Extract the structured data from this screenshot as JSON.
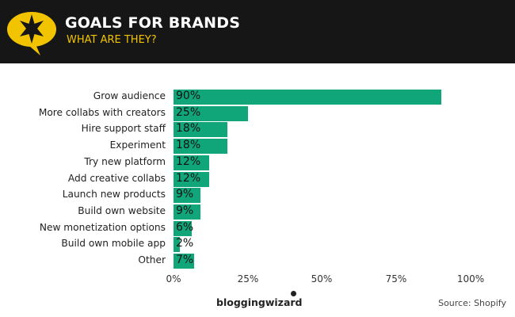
{
  "header": {
    "title": "GOALS FOR BRANDS",
    "subtitle": "WHAT ARE THEY?",
    "logo_icon": "star-speech-bubble-icon",
    "accent_color": "#f2c400",
    "background_color": "#161616"
  },
  "chart_data": {
    "type": "bar",
    "orientation": "horizontal",
    "title": "GOALS FOR BRANDS",
    "subtitle": "WHAT ARE THEY?",
    "categories": [
      "Grow audience",
      "More collabs with creators",
      "Hire support staff",
      "Experiment",
      "Try new platform",
      "Add creative collabs",
      "Launch new products",
      "Build own website",
      "New monetization options",
      "Build own mobile app",
      "Other"
    ],
    "values": [
      90,
      25,
      18,
      18,
      12,
      12,
      9,
      9,
      6,
      2,
      7
    ],
    "value_labels": [
      "90%",
      "25%",
      "18%",
      "18%",
      "12%",
      "12%",
      "9%",
      "9%",
      "6%",
      "2%",
      "7%"
    ],
    "xlabel": "",
    "ylabel": "",
    "xlim": [
      0,
      100
    ],
    "x_ticks": [
      "0%",
      "25%",
      "50%",
      "75%",
      "100%"
    ],
    "grid": false,
    "legend": null,
    "bar_color": "#10a67a"
  },
  "footer": {
    "brand": "bloggingwizard",
    "source": "Source: Shopify"
  }
}
